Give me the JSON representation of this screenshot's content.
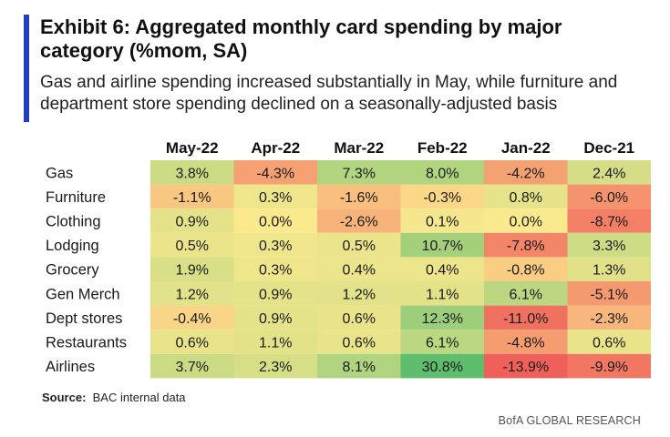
{
  "title": "Exhibit 6: Aggregated monthly card spending by major category (%mom, SA)",
  "subtitle": "Gas and airline spending increased substantially in May, while furniture and department store spending declined on a seasonally-adjusted basis",
  "source_label": "Source:",
  "source_text": "BAC internal data",
  "footer": "BofA GLOBAL RESEARCH",
  "colors": {
    "accent": "#1f3fbf",
    "negative": "#f0605a",
    "neutral": "#fbe98e",
    "positive": "#5fbd6e"
  },
  "chart_data": {
    "type": "heatmap",
    "title": "Exhibit 6: Aggregated monthly card spending by major category (%mom, SA)",
    "columns": [
      "May-22",
      "Apr-22",
      "Mar-22",
      "Feb-22",
      "Jan-22",
      "Dec-21"
    ],
    "rows": [
      "Gas",
      "Furniture",
      "Clothing",
      "Lodging",
      "Grocery",
      "Gen Merch",
      "Dept stores",
      "Restaurants",
      "Airlines"
    ],
    "values": [
      [
        3.8,
        -4.3,
        7.3,
        8.0,
        -4.2,
        2.4
      ],
      [
        -1.1,
        0.3,
        -1.6,
        -0.3,
        0.8,
        -6.0
      ],
      [
        0.9,
        0.0,
        -2.6,
        0.1,
        0.0,
        -8.7
      ],
      [
        0.5,
        0.3,
        0.5,
        10.7,
        -7.8,
        3.3
      ],
      [
        1.9,
        0.3,
        0.4,
        0.4,
        -0.8,
        1.3
      ],
      [
        1.2,
        0.9,
        1.2,
        1.1,
        6.1,
        -5.1
      ],
      [
        -0.4,
        0.9,
        0.6,
        12.3,
        -11.0,
        -2.3
      ],
      [
        0.6,
        1.1,
        0.6,
        6.1,
        -4.8,
        0.6
      ],
      [
        3.7,
        2.3,
        8.1,
        30.8,
        -13.9,
        -9.9
      ]
    ],
    "labels": [
      [
        "3.8%",
        "-4.3%",
        "7.3%",
        "8.0%",
        "-4.2%",
        "2.4%"
      ],
      [
        "-1.1%",
        "0.3%",
        "-1.6%",
        "-0.3%",
        "0.8%",
        "-6.0%"
      ],
      [
        "0.9%",
        "0.0%",
        "-2.6%",
        "0.1%",
        "0.0%",
        "-8.7%"
      ],
      [
        "0.5%",
        "0.3%",
        "0.5%",
        "10.7%",
        "-7.8%",
        "3.3%"
      ],
      [
        "1.9%",
        "0.3%",
        "0.4%",
        "0.4%",
        "-0.8%",
        "1.3%"
      ],
      [
        "1.2%",
        "0.9%",
        "1.2%",
        "1.1%",
        "6.1%",
        "-5.1%"
      ],
      [
        "-0.4%",
        "0.9%",
        "0.6%",
        "12.3%",
        "-11.0%",
        "-2.3%"
      ],
      [
        "0.6%",
        "1.1%",
        "0.6%",
        "6.1%",
        "-4.8%",
        "0.6%"
      ],
      [
        "3.7%",
        "2.3%",
        "8.1%",
        "30.8%",
        "-13.9%",
        "-9.9%"
      ]
    ],
    "unit": "%mom, SA"
  }
}
